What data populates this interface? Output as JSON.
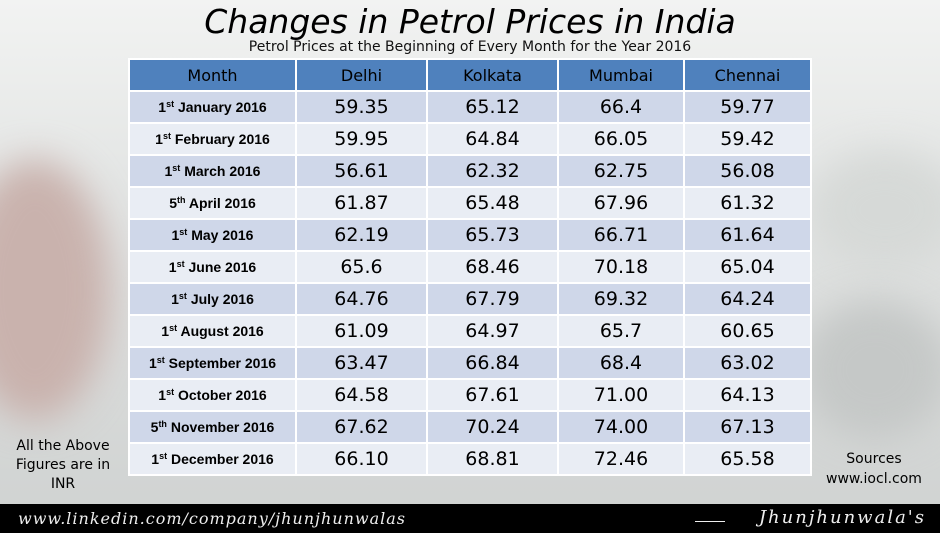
{
  "title": "Changes in Petrol Prices in India",
  "subtitle": "Petrol Prices at the Beginning of Every Month for the Year 2016",
  "note": "All the Above Figures are in INR",
  "sources": {
    "label": "Sources",
    "url": "www.iocl.com"
  },
  "footer": {
    "url": "www.linkedin.com/company/jhunjhunwalas",
    "brand": "Jhunjhunwala's"
  },
  "colors": {
    "header": "#4f81bd",
    "row_odd": "#cfd7e9",
    "row_even": "#e9edf4",
    "footer": "#000000"
  },
  "chart_data": {
    "type": "table",
    "title": "Changes in Petrol Prices in India",
    "subtitle": "Petrol Prices at the Beginning of Every Month for the Year 2016",
    "columns": [
      "Month",
      "Delhi",
      "Kolkata",
      "Mumbai",
      "Chennai"
    ],
    "rows": [
      {
        "day": "1",
        "suffix": "st",
        "month": "January 2016",
        "values": [
          "59.35",
          "65.12",
          "66.4",
          "59.77"
        ]
      },
      {
        "day": "1",
        "suffix": "st",
        "month": "February 2016",
        "values": [
          "59.95",
          "64.84",
          "66.05",
          "59.42"
        ]
      },
      {
        "day": "1",
        "suffix": "st",
        "month": "March 2016",
        "values": [
          "56.61",
          "62.32",
          "62.75",
          "56.08"
        ]
      },
      {
        "day": "5",
        "suffix": "th",
        "month": "April 2016",
        "values": [
          "61.87",
          "65.48",
          "67.96",
          "61.32"
        ]
      },
      {
        "day": "1",
        "suffix": "st",
        "month": "May 2016",
        "values": [
          "62.19",
          "65.73",
          "66.71",
          "61.64"
        ]
      },
      {
        "day": "1",
        "suffix": "st",
        "month": "June 2016",
        "values": [
          "65.6",
          "68.46",
          "70.18",
          "65.04"
        ]
      },
      {
        "day": "1",
        "suffix": "st",
        "month": "July 2016",
        "values": [
          "64.76",
          "67.79",
          "69.32",
          "64.24"
        ]
      },
      {
        "day": "1",
        "suffix": "st",
        "month": "August 2016",
        "values": [
          "61.09",
          "64.97",
          "65.7",
          "60.65"
        ]
      },
      {
        "day": "1",
        "suffix": "st",
        "month": "September 2016",
        "values": [
          "63.47",
          "66.84",
          "68.4",
          "63.02"
        ]
      },
      {
        "day": "1",
        "suffix": "st",
        "month": "October 2016",
        "values": [
          "64.58",
          "67.61",
          "71.00",
          "64.13"
        ]
      },
      {
        "day": "5",
        "suffix": "th",
        "month": "November 2016",
        "values": [
          "67.62",
          "70.24",
          "74.00",
          "67.13"
        ]
      },
      {
        "day": "1",
        "suffix": "st",
        "month": "December 2016",
        "values": [
          "66.10",
          "68.81",
          "72.46",
          "65.58"
        ]
      }
    ]
  }
}
